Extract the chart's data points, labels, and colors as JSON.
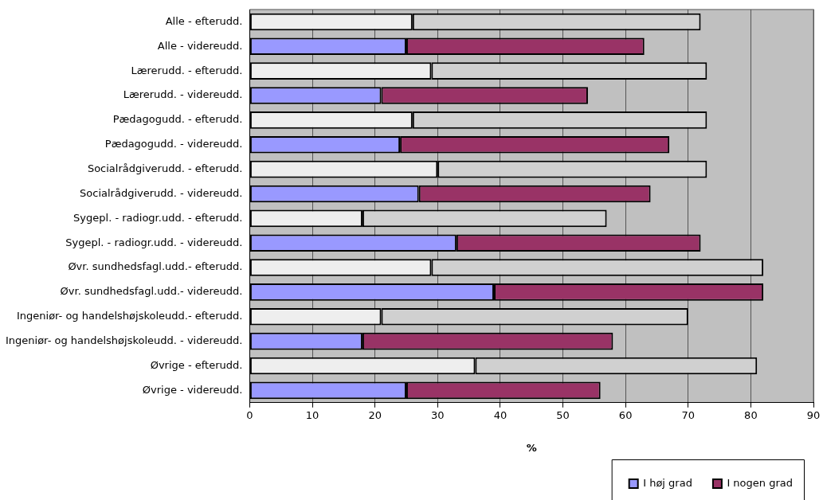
{
  "chart_data": {
    "type": "bar",
    "orientation": "horizontal",
    "stacked": true,
    "xlabel": "%",
    "categories": [
      "Alle - efterudd.",
      "Alle - videreudd.",
      "Lærerudd. - efterudd.",
      "Lærerudd. - videreudd.",
      "Pædagogudd. - efterudd.",
      "Pædagogudd. - videreudd.",
      "Socialrådgiverudd. - efterudd.",
      "Socialrådgiverudd. - videreudd.",
      "Sygepl. - radiogr.udd. - efterudd.",
      "Sygepl. - radiogr.udd. - videreudd.",
      "Øvr. sundhedsfagl.udd.- efterudd.",
      "Øvr. sundhedsfagl.udd.- videreudd.",
      "Ingeniør- og handelshøjskoleudd.- efterudd.",
      "Ingeniør- og handelshøjskoleudd. - videreudd.",
      "Øvrige - efterudd.",
      "Øvrige - videreudd."
    ],
    "series": [
      {
        "name": "I høj grad",
        "color": "#9999ff",
        "colors": [
          "#eeeeee",
          "#9999ff",
          "#eeeeee",
          "#9999ff",
          "#eeeeee",
          "#9999ff",
          "#eeeeee",
          "#9999ff",
          "#eeeeee",
          "#9999ff",
          "#eeeeee",
          "#9999ff",
          "#eeeeee",
          "#9999ff",
          "#eeeeee",
          "#9999ff"
        ],
        "values": [
          26,
          25,
          29,
          21,
          26,
          24,
          30,
          27,
          18,
          33,
          29,
          39,
          21,
          18,
          36,
          25
        ]
      },
      {
        "name": "I nogen grad",
        "color": "#993366",
        "colors": [
          "#d0d0d0",
          "#993366",
          "#d0d0d0",
          "#993366",
          "#d0d0d0",
          "#993366",
          "#d0d0d0",
          "#993366",
          "#d0d0d0",
          "#993366",
          "#d0d0d0",
          "#993366",
          "#d0d0d0",
          "#993366",
          "#d0d0d0",
          "#993366"
        ],
        "values": [
          46,
          38,
          44,
          33,
          47,
          43,
          43,
          37,
          39,
          39,
          53,
          43,
          49,
          40,
          45,
          31
        ]
      }
    ],
    "xlim": [
      0,
      90
    ],
    "xticks": [
      0,
      10,
      20,
      30,
      40,
      50,
      60,
      70,
      80,
      90
    ],
    "grid": "x",
    "legend": "bottom right"
  }
}
